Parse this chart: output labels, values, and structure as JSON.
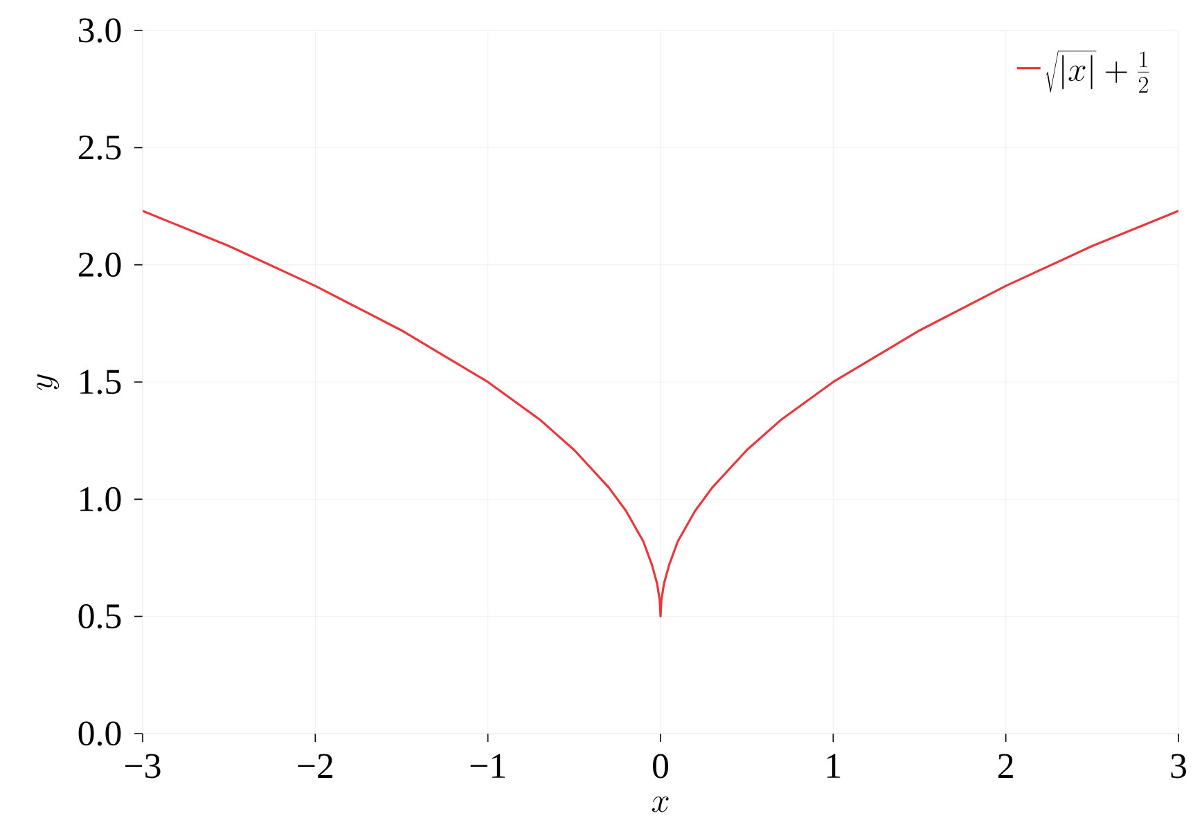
{
  "chart_data": {
    "type": "line",
    "xlabel": "x",
    "ylabel": "y",
    "series": [
      {
        "name": "\\sqrt{|x|}+\\frac{1}{2}",
        "color": "#e8383d",
        "x": [
          -3,
          -2.5,
          -2,
          -1.5,
          -1,
          -0.7,
          -0.5,
          -0.3,
          -0.2,
          -0.1,
          -0.05,
          -0.02,
          -0.005,
          0,
          0.005,
          0.02,
          0.05,
          0.1,
          0.2,
          0.3,
          0.5,
          0.7,
          1,
          1.5,
          2,
          2.5,
          3
        ],
        "values": [
          2.23,
          2.08,
          1.91,
          1.72,
          1.5,
          1.34,
          1.21,
          1.05,
          0.95,
          0.82,
          0.72,
          0.64,
          0.57,
          0.5,
          0.57,
          0.64,
          0.72,
          0.82,
          0.95,
          1.05,
          1.21,
          1.34,
          1.5,
          1.72,
          1.91,
          2.08,
          2.23
        ]
      }
    ],
    "xlim": [
      -3,
      3
    ],
    "ylim": [
      0,
      3
    ],
    "xticks": [
      {
        "value": -3,
        "label": "−3"
      },
      {
        "value": -2,
        "label": "−2"
      },
      {
        "value": -1,
        "label": "−1"
      },
      0,
      1,
      2,
      3
    ],
    "yticks": [
      {
        "value": 0,
        "label": "0.0"
      },
      {
        "value": 0.5,
        "label": "0.5"
      },
      {
        "value": 1,
        "label": "1.0"
      },
      {
        "value": 1.5,
        "label": "1.5"
      },
      {
        "value": 2,
        "label": "2.0"
      },
      {
        "value": 2.5,
        "label": "2.5"
      },
      {
        "value": 3,
        "label": "3.0"
      }
    ],
    "grid": true,
    "legend": "top right",
    "marker": "none",
    "line_style": "solid"
  }
}
